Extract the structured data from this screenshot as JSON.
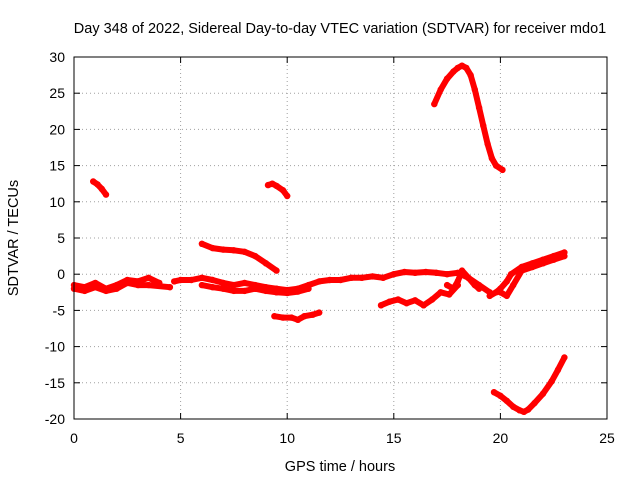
{
  "chart_data": {
    "type": "scatter",
    "title": "Day 348 of 2022, Sidereal Day-to-day VTEC variation (SDTVAR) for receiver mdo1",
    "xlabel": "GPS time / hours",
    "ylabel": "SDTVAR / TECUs",
    "xlim": [
      0,
      25
    ],
    "ylim": [
      -20,
      30
    ],
    "xticks": [
      0,
      5,
      10,
      15,
      20,
      25
    ],
    "yticks": [
      -20,
      -15,
      -10,
      -5,
      0,
      5,
      10,
      15,
      20,
      25,
      30
    ],
    "grid": true,
    "series_color": "#ff0000",
    "grid_color": "#a0a0a0",
    "series": [
      {
        "name": "arc-main-1",
        "x": [
          0,
          0.5,
          1,
          1.5,
          2,
          2.5,
          3,
          3.5,
          4
        ],
        "y": [
          -1.5,
          -1.8,
          -1.2,
          -2,
          -1.5,
          -0.8,
          -1,
          -0.5,
          -1.2
        ]
      },
      {
        "name": "arc-main-1b",
        "x": [
          0,
          0.5,
          1,
          1.5,
          2,
          2.5,
          3,
          3.5,
          4.5
        ],
        "y": [
          -2,
          -2.3,
          -1.8,
          -2.3,
          -2,
          -1.2,
          -1.5,
          -1.5,
          -1.8
        ]
      },
      {
        "name": "arc-main-2",
        "x": [
          4.7,
          5,
          5.5,
          6,
          6.5,
          7,
          7.5,
          8,
          8.5,
          9,
          9.5,
          10,
          10.5,
          11,
          11.5,
          12,
          12.5,
          13,
          13.5,
          14,
          14.5,
          15,
          15.5,
          16,
          16.5,
          17,
          17.5,
          18,
          18.5,
          19,
          19.5
        ],
        "y": [
          -1,
          -0.8,
          -0.8,
          -0.5,
          -0.8,
          -1.2,
          -1.5,
          -1.2,
          -1.5,
          -1.8,
          -2,
          -2.2,
          -2,
          -1.5,
          -1,
          -0.8,
          -0.8,
          -0.5,
          -0.5,
          -0.3,
          -0.5,
          0,
          0.3,
          0.2,
          0.3,
          0.2,
          0,
          0.2,
          -0.5,
          -1.5,
          -2.5
        ]
      },
      {
        "name": "arc-main-2b",
        "x": [
          6,
          6.5,
          7,
          7.5,
          8,
          8.5,
          9,
          9.5,
          10,
          10.5,
          11
        ],
        "y": [
          -1.5,
          -1.8,
          -2,
          -2.3,
          -2.3,
          -2,
          -2.3,
          -2.5,
          -2.6,
          -2.4,
          -2
        ]
      },
      {
        "name": "arc-main-3",
        "x": [
          19.5,
          19.8,
          20,
          20.3,
          20.5,
          21,
          21.5,
          22,
          22.5,
          23
        ],
        "y": [
          -3,
          -2.5,
          -2,
          -1,
          0,
          1,
          1.5,
          2,
          2.5,
          3
        ]
      },
      {
        "name": "arc-main-3b",
        "x": [
          20,
          20.3,
          20.6,
          21,
          21.5,
          22,
          22.5,
          23
        ],
        "y": [
          -2.5,
          -3,
          -1.5,
          0.5,
          1,
          1.5,
          2,
          2.5
        ]
      },
      {
        "name": "arc-18h",
        "x": [
          17.5,
          17.8,
          18,
          18.2,
          18.5,
          18.8,
          19
        ],
        "y": [
          -1.5,
          -2,
          -1,
          0.5,
          -0.5,
          -1.5,
          -2
        ]
      },
      {
        "name": "arc-1h",
        "x": [
          0.9,
          1.1,
          1.3,
          1.5
        ],
        "y": [
          12.8,
          12.4,
          11.8,
          11
        ]
      },
      {
        "name": "arc-9h",
        "x": [
          9.1,
          9.3,
          9.5,
          9.8,
          10
        ],
        "y": [
          12.3,
          12.5,
          12.2,
          11.6,
          10.8
        ]
      },
      {
        "name": "arc-6h",
        "x": [
          6,
          6.5,
          7,
          7.5,
          8,
          8.5,
          9,
          9.5
        ],
        "y": [
          4.2,
          3.6,
          3.4,
          3.3,
          3.1,
          2.5,
          1.5,
          0.5
        ]
      },
      {
        "name": "arc-10h",
        "x": [
          9.4,
          9.8,
          10.2,
          10.5,
          10.8,
          11.2,
          11.5
        ],
        "y": [
          -5.8,
          -6,
          -6,
          -6.3,
          -5.8,
          -5.6,
          -5.3
        ]
      },
      {
        "name": "arc-15h",
        "x": [
          14.4,
          14.8,
          15.2,
          15.6,
          16,
          16.4,
          16.8,
          17.2,
          17.6,
          18
        ],
        "y": [
          -4.3,
          -3.8,
          -3.5,
          -4,
          -3.6,
          -4.3,
          -3.5,
          -2.5,
          -2.8,
          -1.5
        ]
      },
      {
        "name": "arc-17h",
        "x": [
          16.9,
          17.2,
          17.5,
          17.8,
          18,
          18.2,
          18.4,
          18.6,
          18.8,
          19,
          19.2,
          19.4,
          19.6,
          19.8,
          20.1
        ],
        "y": [
          23.5,
          25.5,
          27,
          28,
          28.5,
          28.8,
          28.5,
          27.5,
          25.5,
          23,
          20.5,
          18,
          16,
          15,
          14.4
        ]
      },
      {
        "name": "arc-21h",
        "x": [
          19.7,
          20,
          20.3,
          20.6,
          20.9,
          21.1,
          21.3,
          21.6,
          22,
          22.4,
          22.7,
          23
        ],
        "y": [
          -16.3,
          -16.8,
          -17.5,
          -18.3,
          -18.8,
          -19,
          -18.7,
          -17.8,
          -16.5,
          -14.8,
          -13.2,
          -11.5
        ]
      }
    ]
  }
}
